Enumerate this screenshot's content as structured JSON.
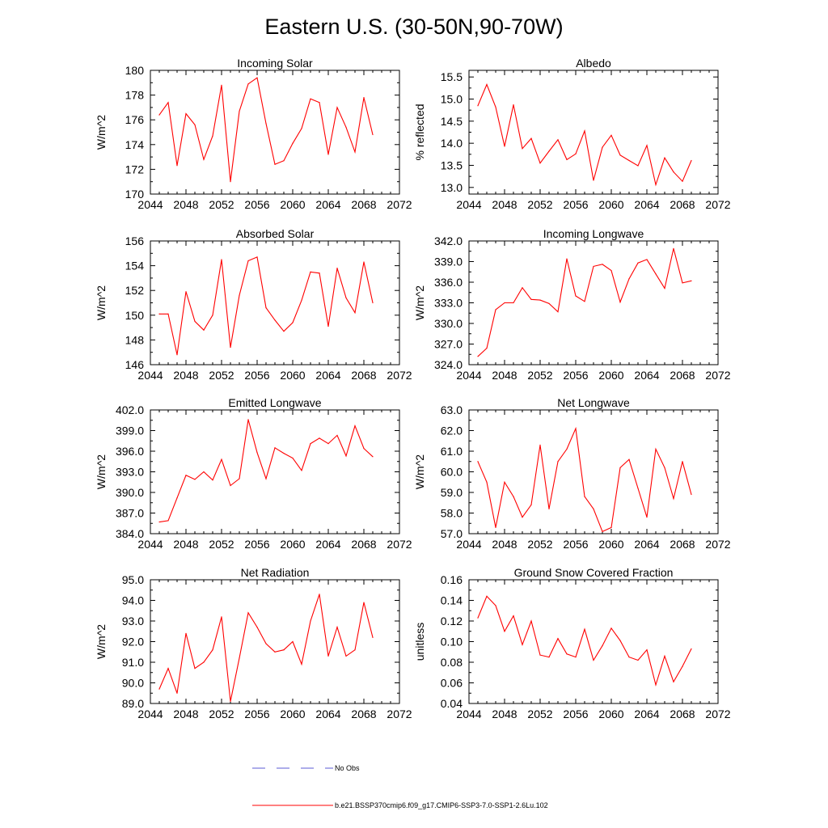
{
  "figure": {
    "title": "Eastern U.S. (30-50N,90-70W)",
    "legend": [
      {
        "label": "No Obs",
        "color": "#5b5bd6",
        "style": "dashed"
      },
      {
        "label": "b.e21.BSSP370cmip6.f09_g17.CMIP6-SSP3-7.0-SSP1-2.6Lu.102",
        "color": "#ff0000",
        "style": "solid"
      }
    ]
  },
  "chart_data": [
    {
      "type": "line",
      "title": "Incoming Solar",
      "ylabel": "W/m^2",
      "xlim": [
        2044,
        2072
      ],
      "ylim": [
        170,
        180
      ],
      "xticks": [
        "2044",
        "2048",
        "2052",
        "2056",
        "2060",
        "2064",
        "2068",
        "2072"
      ],
      "yticks": [
        "170",
        "172",
        "174",
        "176",
        "178",
        "180"
      ],
      "grid": false,
      "series": [
        {
          "color": "#ff0000",
          "x": [
            2045,
            2046,
            2047,
            2048,
            2049,
            2050,
            2051,
            2052,
            2053,
            2054,
            2055,
            2056,
            2057,
            2058,
            2059,
            2060,
            2061,
            2062,
            2063,
            2064,
            2065,
            2066,
            2067,
            2068,
            2069
          ],
          "y": [
            176.4,
            177.4,
            172.3,
            176.5,
            175.6,
            172.8,
            174.7,
            178.8,
            171.0,
            176.7,
            178.9,
            179.4,
            175.7,
            172.4,
            172.7,
            174.1,
            175.3,
            177.7,
            177.4,
            173.2,
            177.0,
            175.4,
            173.4,
            177.8,
            174.8
          ]
        }
      ]
    },
    {
      "type": "line",
      "title": "Albedo",
      "ylabel": "% reflected",
      "xlim": [
        2044,
        2072
      ],
      "ylim": [
        12.85,
        15.65
      ],
      "xticks": [
        "2044",
        "2048",
        "2052",
        "2056",
        "2060",
        "2064",
        "2068",
        "2072"
      ],
      "yticks": [
        "13.0",
        "13.5",
        "14.0",
        "14.5",
        "15.0",
        "15.5"
      ],
      "grid": false,
      "series": [
        {
          "color": "#ff0000",
          "x": [
            2045,
            2046,
            2047,
            2048,
            2049,
            2050,
            2051,
            2052,
            2053,
            2054,
            2055,
            2056,
            2057,
            2058,
            2059,
            2060,
            2061,
            2062,
            2063,
            2064,
            2065,
            2066,
            2067,
            2068,
            2069
          ],
          "y": [
            14.85,
            15.33,
            14.82,
            13.93,
            14.87,
            13.88,
            14.11,
            13.55,
            13.82,
            14.08,
            13.63,
            13.76,
            14.28,
            13.16,
            13.91,
            14.18,
            13.73,
            13.61,
            13.49,
            13.95,
            13.06,
            13.67,
            13.35,
            13.14,
            13.61
          ]
        }
      ]
    },
    {
      "type": "line",
      "title": "Absorbed Solar",
      "ylabel": "W/m^2",
      "xlim": [
        2044,
        2072
      ],
      "ylim": [
        146,
        156
      ],
      "xticks": [
        "2044",
        "2048",
        "2052",
        "2056",
        "2060",
        "2064",
        "2068",
        "2072"
      ],
      "yticks": [
        "146",
        "148",
        "150",
        "152",
        "154",
        "156"
      ],
      "grid": false,
      "series": [
        {
          "color": "#ff0000",
          "x": [
            2045,
            2046,
            2047,
            2048,
            2049,
            2050,
            2051,
            2052,
            2053,
            2054,
            2055,
            2056,
            2057,
            2058,
            2059,
            2060,
            2061,
            2062,
            2063,
            2064,
            2065,
            2066,
            2067,
            2068,
            2069
          ],
          "y": [
            150.1,
            150.1,
            146.8,
            151.9,
            149.5,
            148.8,
            150.0,
            154.5,
            147.4,
            151.6,
            154.4,
            154.7,
            150.6,
            149.6,
            148.7,
            149.4,
            151.2,
            153.5,
            153.4,
            149.1,
            153.8,
            151.4,
            150.2,
            154.3,
            151.0
          ]
        }
      ]
    },
    {
      "type": "line",
      "title": "Incoming Longwave",
      "ylabel": "W/m^2",
      "xlim": [
        2044,
        2072
      ],
      "ylim": [
        324.0,
        342.0
      ],
      "xticks": [
        "2044",
        "2048",
        "2052",
        "2056",
        "2060",
        "2064",
        "2068",
        "2072"
      ],
      "yticks": [
        "324.0",
        "327.0",
        "330.0",
        "333.0",
        "336.0",
        "339.0",
        "342.0"
      ],
      "grid": false,
      "series": [
        {
          "color": "#ff0000",
          "x": [
            2045,
            2046,
            2047,
            2048,
            2049,
            2050,
            2051,
            2052,
            2053,
            2054,
            2055,
            2056,
            2057,
            2058,
            2059,
            2060,
            2061,
            2062,
            2063,
            2064,
            2065,
            2066,
            2067,
            2068,
            2069
          ],
          "y": [
            325.2,
            326.4,
            332.0,
            333.0,
            333.0,
            335.2,
            333.5,
            333.4,
            332.9,
            331.7,
            339.4,
            334.0,
            333.2,
            338.3,
            338.6,
            337.7,
            333.1,
            336.5,
            338.8,
            339.3,
            337.2,
            335.1,
            340.9,
            335.9,
            336.2
          ]
        }
      ]
    },
    {
      "type": "line",
      "title": "Emitted Longwave",
      "ylabel": "W/m^2",
      "xlim": [
        2044,
        2072
      ],
      "ylim": [
        384.0,
        402.0
      ],
      "xticks": [
        "2044",
        "2048",
        "2052",
        "2056",
        "2060",
        "2064",
        "2068",
        "2072"
      ],
      "yticks": [
        "384.0",
        "387.0",
        "390.0",
        "393.0",
        "396.0",
        "399.0",
        "402.0"
      ],
      "grid": false,
      "series": [
        {
          "color": "#ff0000",
          "x": [
            2045,
            2046,
            2047,
            2048,
            2049,
            2050,
            2051,
            2052,
            2053,
            2054,
            2055,
            2056,
            2057,
            2058,
            2059,
            2060,
            2061,
            2062,
            2063,
            2064,
            2065,
            2066,
            2067,
            2068,
            2069
          ],
          "y": [
            385.7,
            385.9,
            389.2,
            392.5,
            391.9,
            393.0,
            391.8,
            394.8,
            391.0,
            392.0,
            400.6,
            395.8,
            392.0,
            396.5,
            395.7,
            395.0,
            393.2,
            397.1,
            397.9,
            397.1,
            398.3,
            395.3,
            399.7,
            396.4,
            395.2
          ]
        }
      ]
    },
    {
      "type": "line",
      "title": "Net Longwave",
      "ylabel": "W/m^2",
      "xlim": [
        2044,
        2072
      ],
      "ylim": [
        57.0,
        63.0
      ],
      "xticks": [
        "2044",
        "2048",
        "2052",
        "2056",
        "2060",
        "2064",
        "2068",
        "2072"
      ],
      "yticks": [
        "57.0",
        "58.0",
        "59.0",
        "60.0",
        "61.0",
        "62.0",
        "63.0"
      ],
      "grid": false,
      "series": [
        {
          "color": "#ff0000",
          "x": [
            2045,
            2046,
            2047,
            2048,
            2049,
            2050,
            2051,
            2052,
            2053,
            2054,
            2055,
            2056,
            2057,
            2058,
            2059,
            2060,
            2061,
            2062,
            2063,
            2064,
            2065,
            2066,
            2067,
            2068,
            2069
          ],
          "y": [
            60.5,
            59.5,
            57.3,
            59.5,
            58.8,
            57.8,
            58.4,
            61.3,
            58.2,
            60.5,
            61.1,
            62.1,
            58.8,
            58.2,
            57.1,
            57.3,
            60.2,
            60.6,
            59.2,
            57.8,
            61.1,
            60.2,
            58.7,
            60.5,
            58.9
          ]
        }
      ]
    },
    {
      "type": "line",
      "title": "Net Radiation",
      "ylabel": "W/m^2",
      "xlim": [
        2044,
        2072
      ],
      "ylim": [
        89.0,
        95.0
      ],
      "xticks": [
        "2044",
        "2048",
        "2052",
        "2056",
        "2060",
        "2064",
        "2068",
        "2072"
      ],
      "yticks": [
        "89.0",
        "90.0",
        "91.0",
        "92.0",
        "93.0",
        "94.0",
        "95.0"
      ],
      "grid": false,
      "series": [
        {
          "color": "#ff0000",
          "x": [
            2045,
            2046,
            2047,
            2048,
            2049,
            2050,
            2051,
            2052,
            2053,
            2054,
            2055,
            2056,
            2057,
            2058,
            2059,
            2060,
            2061,
            2062,
            2063,
            2064,
            2065,
            2066,
            2067,
            2068,
            2069
          ],
          "y": [
            89.7,
            90.7,
            89.5,
            92.4,
            90.7,
            91.0,
            91.6,
            93.2,
            89.1,
            91.2,
            93.4,
            92.7,
            91.9,
            91.5,
            91.6,
            92.0,
            90.9,
            93.0,
            94.3,
            91.3,
            92.7,
            91.3,
            91.6,
            93.9,
            92.2
          ]
        }
      ]
    },
    {
      "type": "line",
      "title": "Ground Snow Covered Fraction",
      "ylabel": "unitless",
      "xlim": [
        2044,
        2072
      ],
      "ylim": [
        0.04,
        0.16
      ],
      "xticks": [
        "2044",
        "2048",
        "2052",
        "2056",
        "2060",
        "2064",
        "2068",
        "2072"
      ],
      "yticks": [
        "0.04",
        "0.06",
        "0.08",
        "0.10",
        "0.12",
        "0.14",
        "0.16"
      ],
      "grid": false,
      "series": [
        {
          "color": "#ff0000",
          "x": [
            2045,
            2046,
            2047,
            2048,
            2049,
            2050,
            2051,
            2052,
            2053,
            2054,
            2055,
            2056,
            2057,
            2058,
            2059,
            2060,
            2061,
            2062,
            2063,
            2064,
            2065,
            2066,
            2067,
            2068,
            2069
          ],
          "y": [
            0.123,
            0.144,
            0.135,
            0.11,
            0.125,
            0.097,
            0.12,
            0.087,
            0.085,
            0.103,
            0.088,
            0.085,
            0.112,
            0.082,
            0.096,
            0.113,
            0.101,
            0.085,
            0.082,
            0.092,
            0.058,
            0.086,
            0.061,
            0.076,
            0.093
          ]
        }
      ]
    }
  ]
}
